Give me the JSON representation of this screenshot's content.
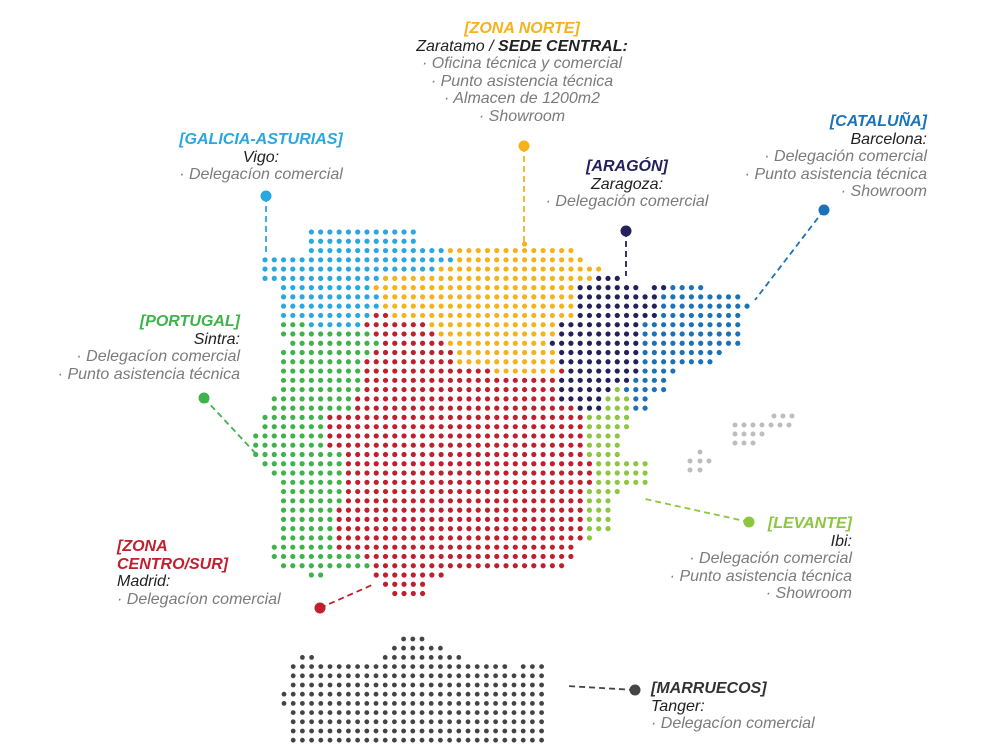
{
  "colors": {
    "norte": "#f5b21b",
    "galicia": "#29a8e0",
    "aragon": "#24205a",
    "cataluna": "#1b72b8",
    "portugal": "#3db34a",
    "centro": "#c0202e",
    "levante": "#8dc63f",
    "baleares": "#bdbdbd",
    "marruecos": "#444444"
  },
  "regions": {
    "norte": {
      "title": "[ZONA NORTE]",
      "city": "Zaratamo / ",
      "city_bold": "SEDE CENTRAL:",
      "items": [
        "· Oficina técnica y comercial",
        "· Punto asistencia técnica",
        "· Almacen de 1200m2",
        "· Showroom"
      ]
    },
    "galicia": {
      "title": "[GALICIA-ASTURIAS]",
      "city": "Vigo:",
      "items": [
        "· Delegacíon comercial"
      ]
    },
    "aragon": {
      "title": "[ARAGÓN]",
      "city": "Zaragoza:",
      "items": [
        "· Delegación comercial"
      ]
    },
    "cataluna": {
      "title": "[CATALUÑA]",
      "city": "Barcelona:",
      "items": [
        "· Delegación comercial",
        "· Punto asistencia técnica",
        "· Showroom"
      ]
    },
    "portugal": {
      "title": "[PORTUGAL]",
      "city": "Sintra:",
      "items": [
        "· Delegacíon comercial",
        "· Punto asistencia técnica"
      ]
    },
    "centro": {
      "title_1": "[ZONA",
      "title_2": "CENTRO/SUR]",
      "city": "Madrid:",
      "items": [
        "· Delegacíon comercial"
      ]
    },
    "levante": {
      "title": "[LEVANTE]",
      "city": "Ibi:",
      "items": [
        "· Delegación comercial",
        "· Punto asistencia técnica",
        "· Showroom"
      ]
    },
    "marruecos": {
      "title": "[MARRUECOS]",
      "city": "Tanger:",
      "items": [
        "· Delegacíon comercial"
      ]
    }
  }
}
